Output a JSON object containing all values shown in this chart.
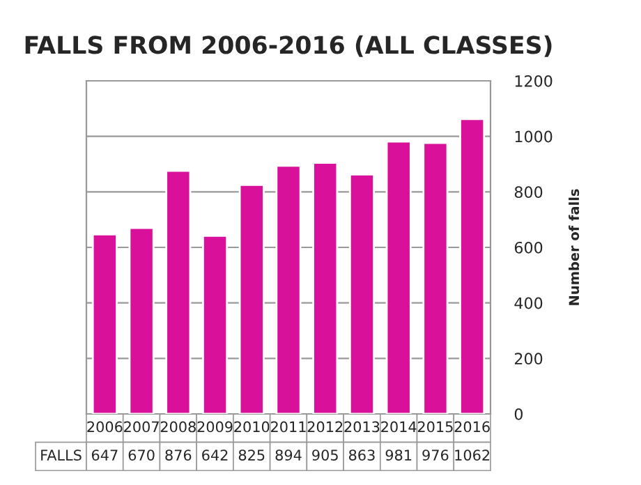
{
  "chart_data": {
    "type": "bar",
    "title": "FALLS FROM 2006-2016 (ALL CLASSES)",
    "ylabel": "Number of falls",
    "categories": [
      "2006",
      "2007",
      "2008",
      "2009",
      "2010",
      "2011",
      "2012",
      "2013",
      "2014",
      "2015",
      "2016"
    ],
    "series": [
      {
        "name": "FALLS",
        "color": "#d9109a",
        "values": [
          647,
          670,
          876,
          642,
          825,
          894,
          905,
          863,
          981,
          976,
          1062
        ]
      }
    ],
    "ylim": [
      0,
      1200
    ],
    "yticks": [
      0,
      200,
      400,
      600,
      800,
      1000,
      1200
    ],
    "grid": "y",
    "data_labels": true
  }
}
